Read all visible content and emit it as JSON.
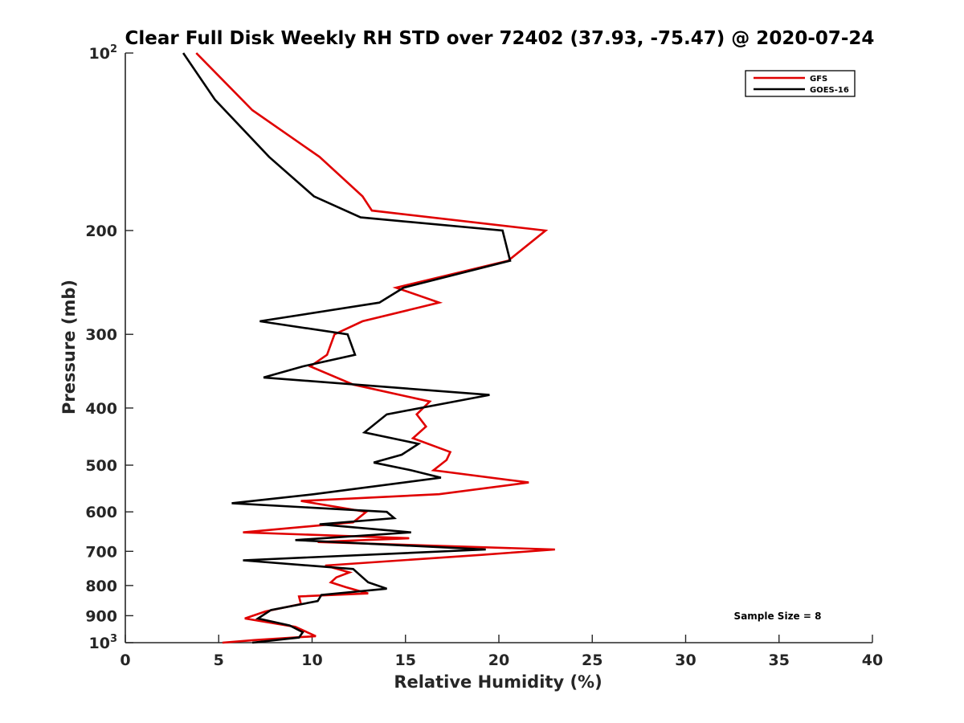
{
  "chart_data": {
    "type": "line",
    "title": "Clear Full Disk Weekly RH STD over 72402 (37.93, -75.47) @ 2020-07-24",
    "xlabel": "Relative Humidity (%)",
    "ylabel": "Pressure (mb)",
    "xlim": [
      0,
      40
    ],
    "ylim": [
      100,
      1000
    ],
    "yscale": "log",
    "y_reversed": true,
    "grid": false,
    "legend_position": "top-right",
    "x_ticks": [
      0,
      5,
      10,
      15,
      20,
      25,
      30,
      35,
      40
    ],
    "x_tick_labels": [
      "0",
      "5",
      "10",
      "15",
      "20",
      "25",
      "30",
      "35",
      "40"
    ],
    "y_ticks": [
      {
        "value": 100,
        "base": "10",
        "exp": "2"
      },
      {
        "value": 200,
        "label": "200"
      },
      {
        "value": 300,
        "label": "300"
      },
      {
        "value": 400,
        "label": "400"
      },
      {
        "value": 500,
        "label": "500"
      },
      {
        "value": 600,
        "label": "600"
      },
      {
        "value": 700,
        "label": "700"
      },
      {
        "value": 800,
        "label": "800"
      },
      {
        "value": 900,
        "label": "900"
      },
      {
        "value": 1000,
        "base": "10",
        "exp": "3"
      }
    ],
    "series": [
      {
        "name": "GFS",
        "color": "#e00000",
        "points": [
          [
            3.8,
            100
          ],
          [
            6.8,
            125
          ],
          [
            10.4,
            150
          ],
          [
            12.7,
            175
          ],
          [
            13.2,
            185
          ],
          [
            22.5,
            200
          ],
          [
            20.5,
            225
          ],
          [
            14.5,
            250
          ],
          [
            16.8,
            265
          ],
          [
            12.7,
            285
          ],
          [
            11.2,
            300
          ],
          [
            10.8,
            325
          ],
          [
            9.9,
            340
          ],
          [
            12.2,
            365
          ],
          [
            16.3,
            390
          ],
          [
            15.6,
            410
          ],
          [
            16.1,
            430
          ],
          [
            15.4,
            450
          ],
          [
            17.4,
            475
          ],
          [
            17.2,
            490
          ],
          [
            16.5,
            510
          ],
          [
            21.6,
            535
          ],
          [
            16.8,
            560
          ],
          [
            9.4,
            575
          ],
          [
            12.9,
            600
          ],
          [
            12.2,
            625
          ],
          [
            6.3,
            650
          ],
          [
            15.2,
            665
          ],
          [
            10.3,
            675
          ],
          [
            23.0,
            695
          ],
          [
            19.0,
            710
          ],
          [
            10.7,
            740
          ],
          [
            12.0,
            760
          ],
          [
            11.3,
            775
          ],
          [
            11.0,
            790
          ],
          [
            11.8,
            805
          ],
          [
            13.0,
            825
          ],
          [
            9.3,
            835
          ],
          [
            9.4,
            860
          ],
          [
            7.5,
            885
          ],
          [
            6.4,
            910
          ],
          [
            9.1,
            940
          ],
          [
            10.2,
            975
          ],
          [
            6.9,
            990
          ],
          [
            5.2,
            1000
          ]
        ]
      },
      {
        "name": "GOES-16",
        "color": "#000000",
        "points": [
          [
            3.1,
            100
          ],
          [
            4.8,
            120
          ],
          [
            7.7,
            150
          ],
          [
            10.1,
            175
          ],
          [
            12.6,
            190
          ],
          [
            20.2,
            200
          ],
          [
            20.6,
            225
          ],
          [
            14.9,
            250
          ],
          [
            13.6,
            265
          ],
          [
            7.2,
            285
          ],
          [
            11.9,
            300
          ],
          [
            12.3,
            325
          ],
          [
            9.5,
            340
          ],
          [
            7.4,
            355
          ],
          [
            19.5,
            380
          ],
          [
            14.0,
            410
          ],
          [
            12.8,
            440
          ],
          [
            15.7,
            460
          ],
          [
            14.8,
            480
          ],
          [
            13.3,
            495
          ],
          [
            15.3,
            510
          ],
          [
            16.9,
            525
          ],
          [
            10.1,
            560
          ],
          [
            5.7,
            580
          ],
          [
            14.0,
            600
          ],
          [
            14.4,
            615
          ],
          [
            10.4,
            630
          ],
          [
            15.3,
            650
          ],
          [
            9.1,
            670
          ],
          [
            19.3,
            695
          ],
          [
            6.3,
            725
          ],
          [
            12.2,
            750
          ],
          [
            12.7,
            775
          ],
          [
            13.0,
            790
          ],
          [
            14.0,
            810
          ],
          [
            10.5,
            830
          ],
          [
            10.3,
            850
          ],
          [
            7.8,
            880
          ],
          [
            7.1,
            910
          ],
          [
            8.8,
            935
          ],
          [
            9.5,
            960
          ],
          [
            9.3,
            980
          ],
          [
            6.8,
            1000
          ]
        ]
      }
    ],
    "annotations": [
      "Sample Size = 8"
    ]
  }
}
